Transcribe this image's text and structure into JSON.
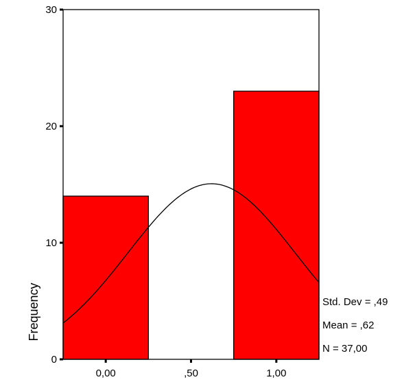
{
  "chart_data": {
    "type": "bar",
    "ylabel": "Frequency",
    "xlabel": "",
    "x_range": [
      -0.25,
      1.25
    ],
    "ylim": [
      0,
      30
    ],
    "yticks": [
      {
        "value": 0,
        "label": "0"
      },
      {
        "value": 10,
        "label": "10"
      },
      {
        "value": 20,
        "label": "20"
      },
      {
        "value": 30,
        "label": "30"
      }
    ],
    "xticks": [
      {
        "value": 0,
        "label": "0,00"
      },
      {
        "value": 0.5,
        "label": ",50"
      },
      {
        "value": 1,
        "label": "1,00"
      }
    ],
    "bins": [
      {
        "x0": -0.25,
        "x1": 0.25,
        "value": 14
      },
      {
        "x0": 0.25,
        "x1": 0.75,
        "value": 0
      },
      {
        "x0": 0.75,
        "x1": 1.25,
        "value": 23
      }
    ],
    "normal_curve": {
      "mean": 0.62,
      "std": 0.49,
      "n": 37,
      "bin_width": 0.5
    },
    "bar_color": "#ff0000",
    "grid": false,
    "stats": {
      "std_dev": "Std. Dev = ,49",
      "mean": "Mean = ,62",
      "n": "N = 37,00"
    }
  }
}
